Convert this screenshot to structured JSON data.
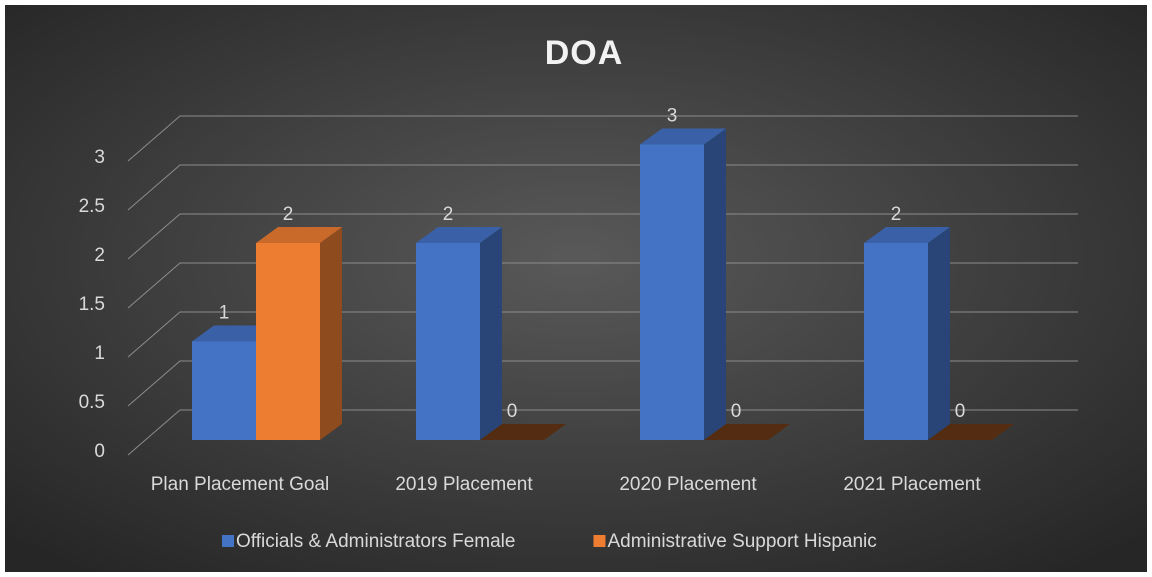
{
  "chart_data": {
    "type": "bar",
    "title": "DOA",
    "categories": [
      "Plan Placement Goal",
      "2019 Placement",
      "2020 Placement",
      "2021 Placement"
    ],
    "series": [
      {
        "name": "Officials & Administrators Female",
        "color": "#4472c4",
        "values": [
          1,
          2,
          3,
          2
        ]
      },
      {
        "name": "Administrative Support Hispanic",
        "color": "#ed7d31",
        "values": [
          2,
          0,
          0,
          0
        ]
      }
    ],
    "ylim": [
      0,
      3
    ],
    "yticks": [
      0,
      0.5,
      1,
      1.5,
      2,
      2.5,
      3
    ],
    "grid": true,
    "legend": "bottom"
  }
}
